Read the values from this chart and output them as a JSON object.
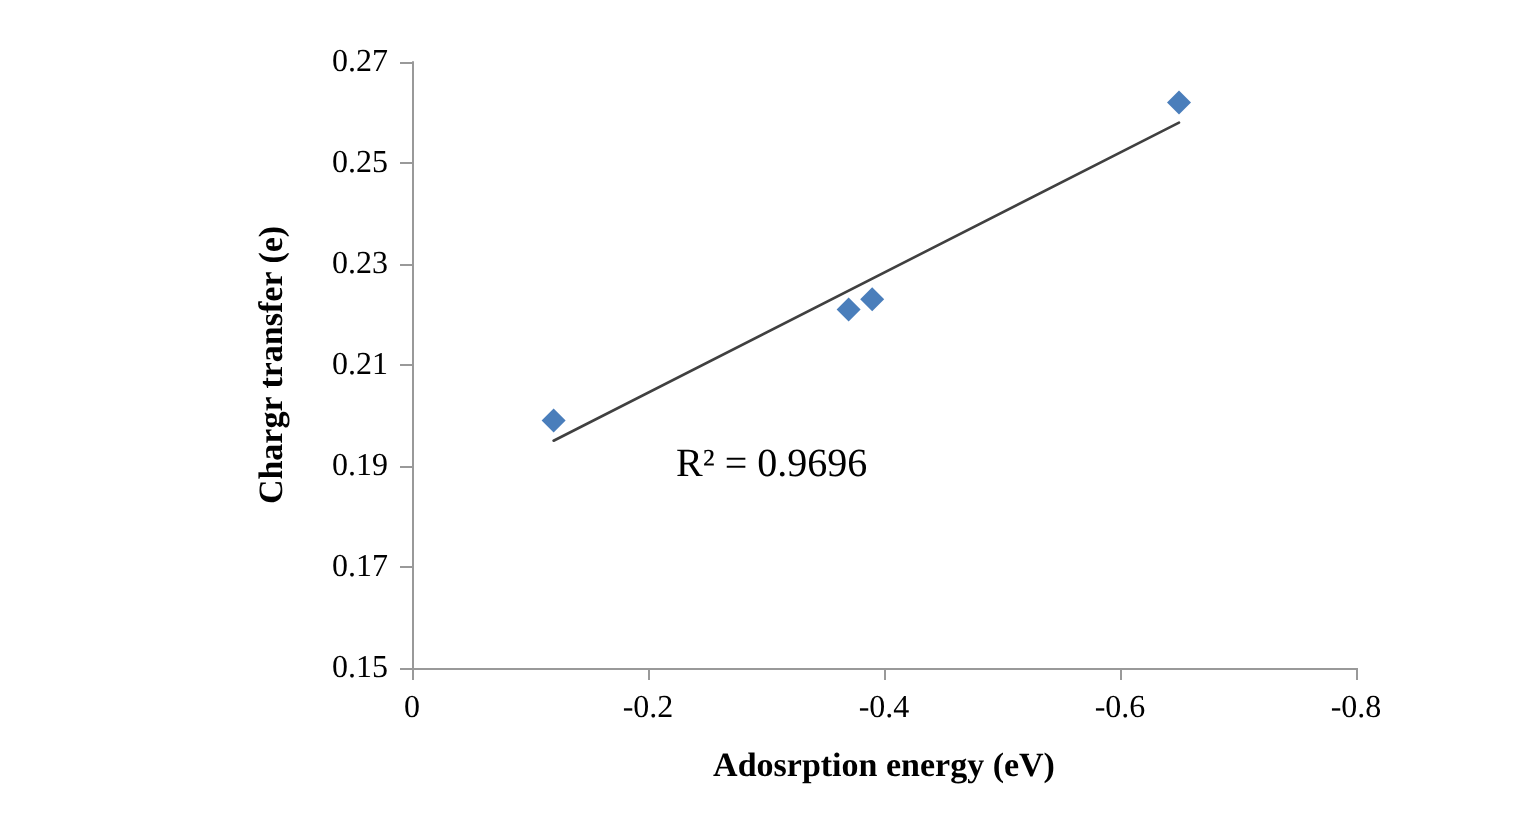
{
  "chart_data": {
    "type": "scatter",
    "xlabel": "Adosrption energy (eV)",
    "ylabel": "Chargr transfer (e)",
    "annotations": [
      "R² = 0.9696"
    ],
    "series": [
      {
        "color": "#4a7ebb",
        "x": [
          -0.12,
          -0.37,
          -0.39,
          -0.65
        ],
        "values": [
          0.199,
          0.221,
          0.223,
          0.262
        ],
        "marker": "diamond"
      },
      {
        "type": "line",
        "color": "#404040",
        "x": [
          -0.12,
          -0.65
        ],
        "values": [
          0.195,
          0.258
        ],
        "marker": "none",
        "line_style": "solid"
      }
    ],
    "xlim": [
      0,
      -0.8
    ],
    "xticks": [
      0,
      -0.2,
      -0.4,
      -0.6,
      -0.8
    ],
    "ylim": [
      0.15,
      0.27
    ],
    "yticks": [
      0.15,
      0.17,
      0.19,
      0.21,
      0.23,
      0.25,
      0.27
    ],
    "grid": false
  }
}
